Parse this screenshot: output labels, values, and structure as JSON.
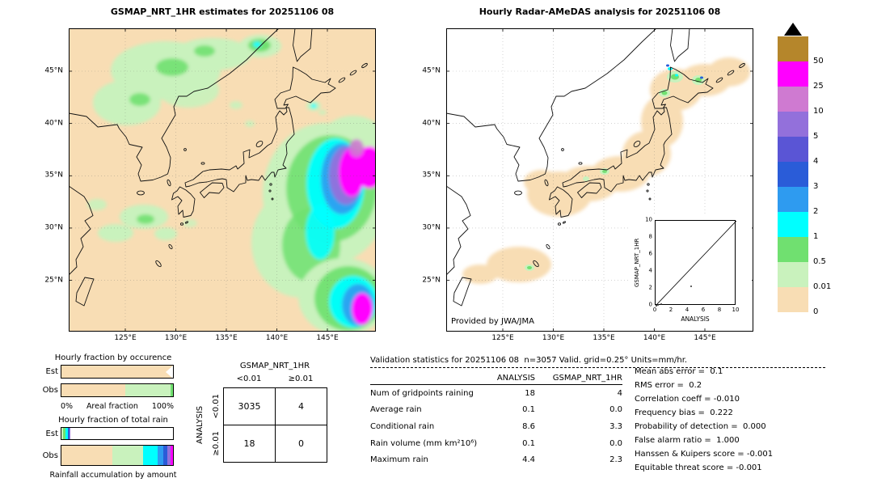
{
  "left_map": {
    "title": "GSMAP_NRT_1HR estimates for 20251106 08",
    "y_ticks": [
      "45°N",
      "40°N",
      "35°N",
      "30°N",
      "25°N"
    ],
    "x_ticks": [
      "125°E",
      "130°E",
      "135°E",
      "140°E",
      "145°E"
    ]
  },
  "right_map": {
    "title": "Hourly Radar-AMeDAS analysis for 20251106 08",
    "y_ticks": [
      "45°N",
      "40°N",
      "35°N",
      "30°N",
      "25°N"
    ],
    "x_ticks": [
      "125°E",
      "130°E",
      "135°E",
      "140°E",
      "145°E"
    ],
    "credit": "Provided by JWA/JMA",
    "inset": {
      "ylabel": "GSMAP_NRT_1HR",
      "xlabel": "ANALYSIS",
      "ticks": [
        "0",
        "2",
        "4",
        "6",
        "8",
        "10"
      ],
      "points": [
        [
          0.1,
          0.0
        ],
        [
          0.3,
          0.1
        ],
        [
          0.7,
          0.2
        ],
        [
          4.4,
          2.3
        ]
      ]
    }
  },
  "legend": {
    "entries": [
      {
        "label": "50",
        "color": "#b5862b"
      },
      {
        "label": "25",
        "color": "#ff00ff"
      },
      {
        "label": "10",
        "color": "#cf7ad1"
      },
      {
        "label": "5",
        "color": "#9370db"
      },
      {
        "label": "4",
        "color": "#5a55d5"
      },
      {
        "label": "3",
        "color": "#2a5cd8"
      },
      {
        "label": "2",
        "color": "#2e9bf0"
      },
      {
        "label": "1",
        "color": "#00ffff"
      },
      {
        "label": "0.5",
        "color": "#70e070"
      },
      {
        "label": "0.01",
        "color": "#c9f2bd"
      },
      {
        "label": "0",
        "color": "#f8ddb4"
      }
    ]
  },
  "occurrence_chart": {
    "title": "Hourly fraction by occurence",
    "rows": [
      {
        "label": "Est",
        "notch": true,
        "segments": [
          {
            "color": "#f8ddb4",
            "pct": 100
          }
        ]
      },
      {
        "label": "Obs",
        "segments": [
          {
            "color": "#f8ddb4",
            "pct": 57
          },
          {
            "color": "#c9f2bd",
            "pct": 41
          },
          {
            "color": "#70e070",
            "pct": 2
          }
        ]
      }
    ],
    "x_min_label": "0%",
    "x_max_label": "100%",
    "x_axis_label": "Areal fraction"
  },
  "totalrain_chart": {
    "title": "Hourly fraction of total rain",
    "rows": [
      {
        "label": "Est",
        "segments": [
          {
            "color": "#c9f2bd",
            "pct": 1.5
          },
          {
            "color": "#70e070",
            "pct": 2
          },
          {
            "color": "#00ffff",
            "pct": 2
          },
          {
            "color": "#2a5cd8",
            "pct": 1.5
          },
          {
            "color": "#9370db",
            "pct": 1
          }
        ]
      },
      {
        "label": "Obs",
        "segments": [
          {
            "color": "#f8ddb4",
            "pct": 46
          },
          {
            "color": "#c9f2bd",
            "pct": 27
          },
          {
            "color": "#00ffff",
            "pct": 13
          },
          {
            "color": "#2e9bf0",
            "pct": 5
          },
          {
            "color": "#2a5cd8",
            "pct": 4
          },
          {
            "color": "#9370db",
            "pct": 3
          },
          {
            "color": "#ff00ff",
            "pct": 2
          }
        ]
      }
    ],
    "caption": "Rainfall accumulation by amount"
  },
  "contingency": {
    "col_group_label": "GSMAP_NRT_1HR",
    "row_group_label": "ANALYSIS",
    "col_labels": [
      "<0.01",
      "≥0.01"
    ],
    "row_labels": [
      "<0.01",
      "≥0.01"
    ],
    "values": [
      [
        "3035",
        "4"
      ],
      [
        "18",
        "0"
      ]
    ]
  },
  "stats": {
    "title": "Validation statistics for 20251106 08  n=3057 Valid. grid=0.25° Units=mm/hr.",
    "columns": [
      "ANALYSIS",
      "GSMAP_NRT_1HR"
    ],
    "rows": [
      {
        "label": "Num of gridpoints raining",
        "analysis": "18",
        "gsmap": "4"
      },
      {
        "label": "Average rain",
        "analysis": "0.1",
        "gsmap": "0.0"
      },
      {
        "label": "Conditional rain",
        "analysis": "8.6",
        "gsmap": "3.3"
      },
      {
        "label": "Rain volume (mm km²10⁶)",
        "analysis": "0.1",
        "gsmap": "0.0"
      },
      {
        "label": "Maximum rain",
        "analysis": "4.4",
        "gsmap": "2.3"
      }
    ],
    "scores": [
      {
        "label": "Mean abs error",
        "value": " 0.1"
      },
      {
        "label": "RMS error",
        "value": " 0.2"
      },
      {
        "label": "Correlation coeff",
        "value": "-0.010"
      },
      {
        "label": "Frequency bias",
        "value": " 0.222"
      },
      {
        "label": "Probability of detection",
        "value": " 0.000"
      },
      {
        "label": "False alarm ratio",
        "value": " 1.000"
      },
      {
        "label": "Hanssen & Kuipers score",
        "value": "-0.001"
      },
      {
        "label": "Equitable threat score",
        "value": "-0.001"
      }
    ]
  },
  "chart_data": [
    {
      "type": "heatmap",
      "title": "GSMAP_NRT_1HR estimates for 20251106 08",
      "x_ticks": [
        "125°E",
        "130°E",
        "135°E",
        "140°E",
        "145°E"
      ],
      "y_ticks": [
        "45°N",
        "40°N",
        "35°N",
        "30°N",
        "25°N"
      ],
      "units": "mm/hr",
      "colorbar_levels": [
        0,
        0.01,
        0.5,
        1,
        2,
        3,
        4,
        5,
        10,
        25,
        50
      ],
      "legend_position": "right"
    },
    {
      "type": "heatmap",
      "title": "Hourly Radar-AMeDAS analysis for 20251106 08",
      "x_ticks": [
        "125°E",
        "130°E",
        "135°E",
        "140°E",
        "145°E"
      ],
      "y_ticks": [
        "45°N",
        "40°N",
        "35°N",
        "30°N",
        "25°N"
      ],
      "units": "mm/hr",
      "annotation": "Provided by JWA/JMA"
    },
    {
      "type": "bar",
      "title": "Hourly fraction by occurence",
      "orientation": "horizontal",
      "categories": [
        "Est",
        "Obs"
      ],
      "xlabel": "Areal fraction",
      "xlim": [
        "0%",
        "100%"
      ],
      "series": [
        {
          "name": "Est",
          "values": [
            100
          ]
        },
        {
          "name": "Obs",
          "values": [
            57,
            41,
            2
          ]
        }
      ]
    },
    {
      "type": "bar",
      "title": "Hourly fraction of total rain",
      "orientation": "horizontal",
      "categories": [
        "Est",
        "Obs"
      ],
      "xlabel": "Rainfall accumulation by amount",
      "series": [
        {
          "name": "Est",
          "values": [
            1.5,
            2,
            2,
            1.5,
            1
          ]
        },
        {
          "name": "Obs",
          "values": [
            46,
            27,
            13,
            5,
            4,
            3,
            2
          ]
        }
      ]
    },
    {
      "type": "table",
      "title": "Contingency table",
      "col_group": "GSMAP_NRT_1HR",
      "row_group": "ANALYSIS",
      "columns": [
        "<0.01",
        "≥0.01"
      ],
      "row_labels": [
        "<0.01",
        "≥0.01"
      ],
      "rows": [
        [
          3035,
          4
        ],
        [
          18,
          0
        ]
      ]
    },
    {
      "type": "table",
      "title": "Validation statistics for 20251106 08",
      "n": 3057,
      "valid_grid": "0.25°",
      "units": "mm/hr",
      "categories": [
        "Num of gridpoints raining",
        "Average rain",
        "Conditional rain",
        "Rain volume (mm km²10⁶)",
        "Maximum rain"
      ],
      "series": [
        {
          "name": "ANALYSIS",
          "values": [
            18,
            0.1,
            8.6,
            0.1,
            4.4
          ]
        },
        {
          "name": "GSMAP_NRT_1HR",
          "values": [
            4,
            0.0,
            3.3,
            0.0,
            2.3
          ]
        }
      ],
      "scores": {
        "Mean abs error": 0.1,
        "RMS error": 0.2,
        "Correlation coeff": -0.01,
        "Frequency bias": 0.222,
        "Probability of detection": 0.0,
        "False alarm ratio": 1.0,
        "Hanssen & Kuipers score": -0.001,
        "Equitable threat score": -0.001
      }
    },
    {
      "type": "scatter",
      "title": "inset GSMAP_NRT_1HR vs ANALYSIS",
      "xlabel": "ANALYSIS",
      "ylabel": "GSMAP_NRT_1HR",
      "xlim": [
        0,
        10
      ],
      "ylim": [
        0,
        10
      ],
      "diagonal": true,
      "points": [
        [
          0.1,
          0.0
        ],
        [
          0.3,
          0.1
        ],
        [
          0.7,
          0.2
        ],
        [
          4.4,
          2.3
        ]
      ]
    }
  ]
}
